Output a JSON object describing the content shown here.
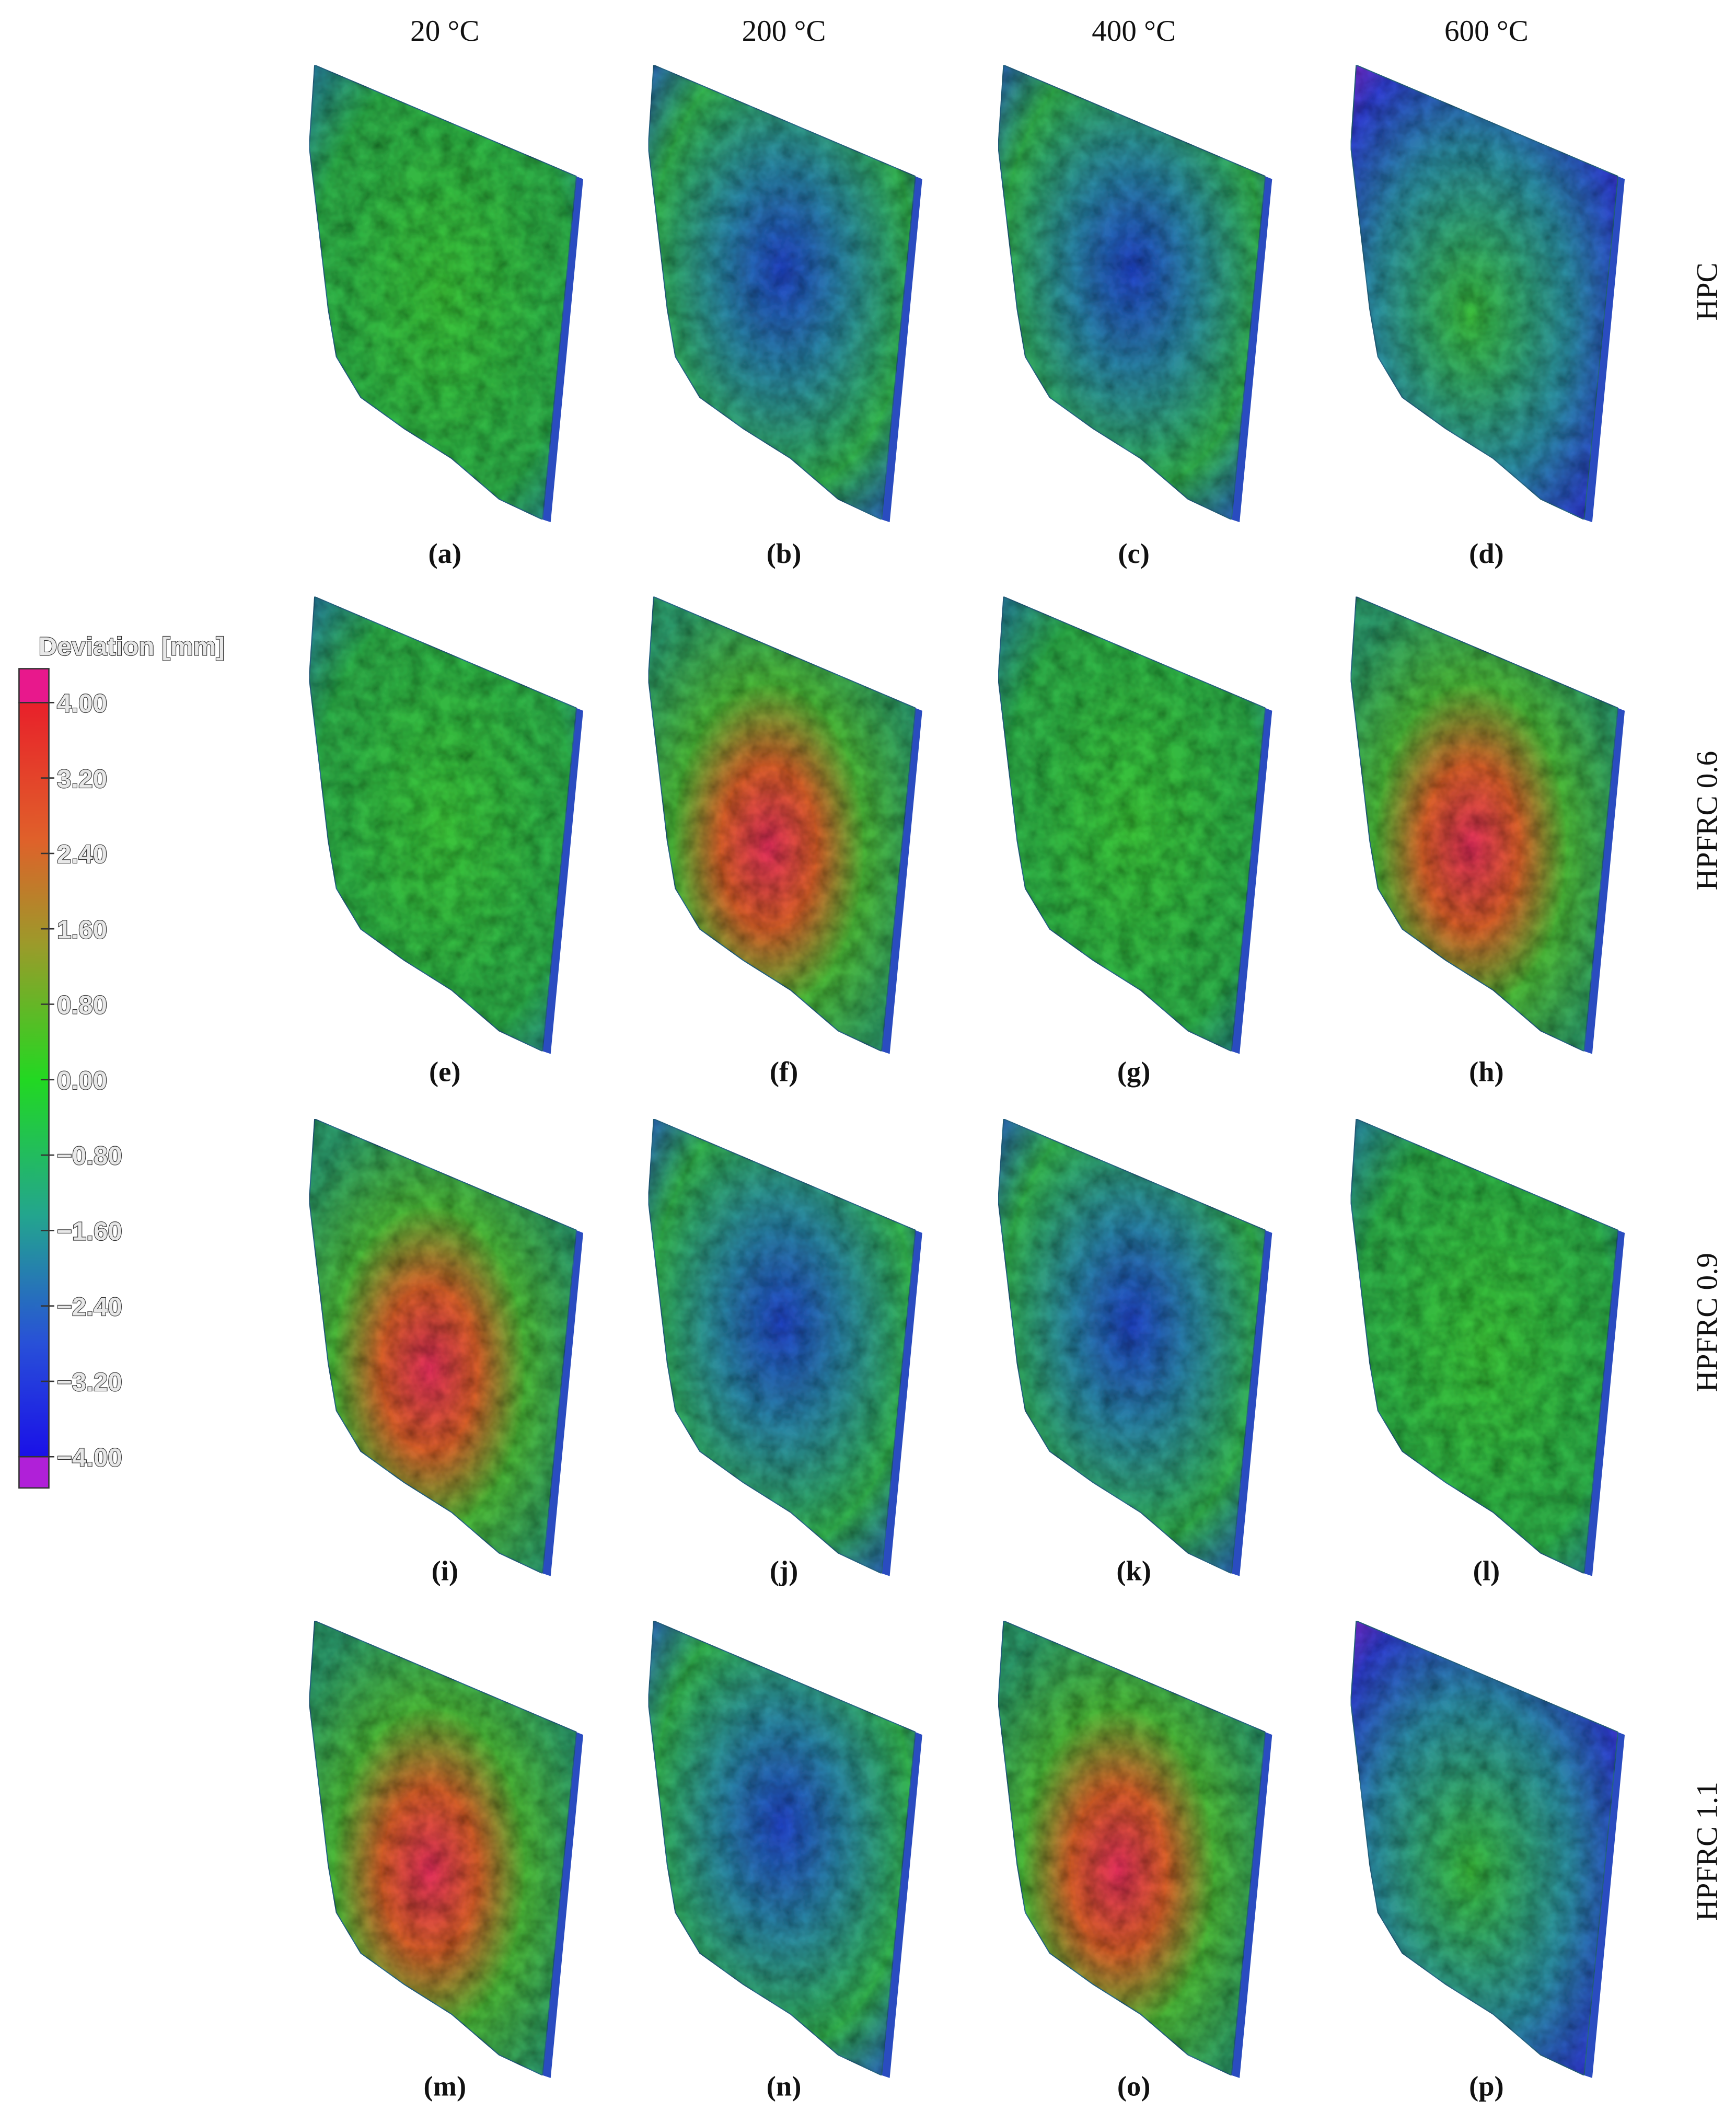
{
  "columns": [
    "20 °C",
    "200 °C",
    "400 °C",
    "600 °C"
  ],
  "rows": [
    "HPC",
    "HPFRC 0.6",
    "HPFRC 0.9",
    "HPFRC 1.1"
  ],
  "panel_labels": [
    "(a)",
    "(b)",
    "(c)",
    "(d)",
    "(e)",
    "(f)",
    "(g)",
    "(h)",
    "(i)",
    "(j)",
    "(k)",
    "(l)",
    "(m)",
    "(n)",
    "(o)",
    "(p)"
  ],
  "legend": {
    "title": "Deviation [mm]",
    "ticks": [
      "4.00",
      "3.20",
      "2.40",
      "1.60",
      "0.80",
      "0.00",
      "−0.80",
      "−1.60",
      "−2.40",
      "−3.20",
      "−4.00"
    ]
  }
}
